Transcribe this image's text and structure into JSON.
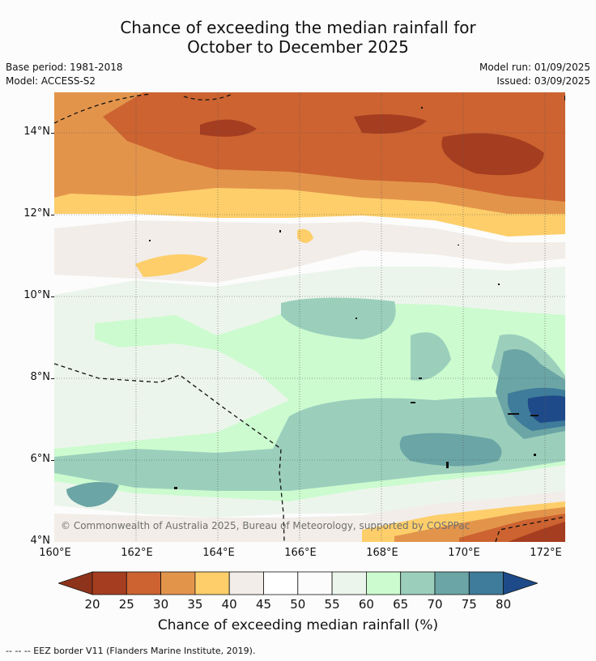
{
  "title_line1": "Chance of exceeding the median rainfall for",
  "title_line2": "October to December 2025",
  "meta": {
    "base_period": "Base period: 1981-2018",
    "model": "Model: ACCESS-S2",
    "model_run": "Model run: 01/09/2025",
    "issued": "Issued: 03/09/2025"
  },
  "map": {
    "lat_labels": [
      "14°N",
      "12°N",
      "10°N",
      "8°N",
      "6°N",
      "4°N"
    ],
    "lon_labels": [
      "160°E",
      "162°E",
      "164°E",
      "166°E",
      "168°E",
      "170°E",
      "172°E"
    ],
    "lat_range": [
      4,
      15
    ],
    "lon_range": [
      160,
      172.5
    ],
    "copyright": "© Commonwealth of Australia 2025, Bureau of Meteorology, supported by COSPPac"
  },
  "colorbar": {
    "title": "Chance of exceeding median rainfall (%)",
    "tick_labels": [
      "20",
      "25",
      "30",
      "35",
      "40",
      "45",
      "50",
      "55",
      "60",
      "65",
      "70",
      "75",
      "80"
    ],
    "colors": [
      "#a53d20",
      "#cc6330",
      "#e3944b",
      "#fdce6a",
      "#f2ede8",
      "#ffffff",
      "#fcfcfc",
      "#ecf5ec",
      "#ccfbcf",
      "#9bcfbc",
      "#6ba5a5",
      "#3f7b9a"
    ],
    "under_color": "#8e331b",
    "over_color": "#1e4a89"
  },
  "eez_note": "--  --  -- EEZ border V11 (Flanders Marine Institute, 2019)."
}
